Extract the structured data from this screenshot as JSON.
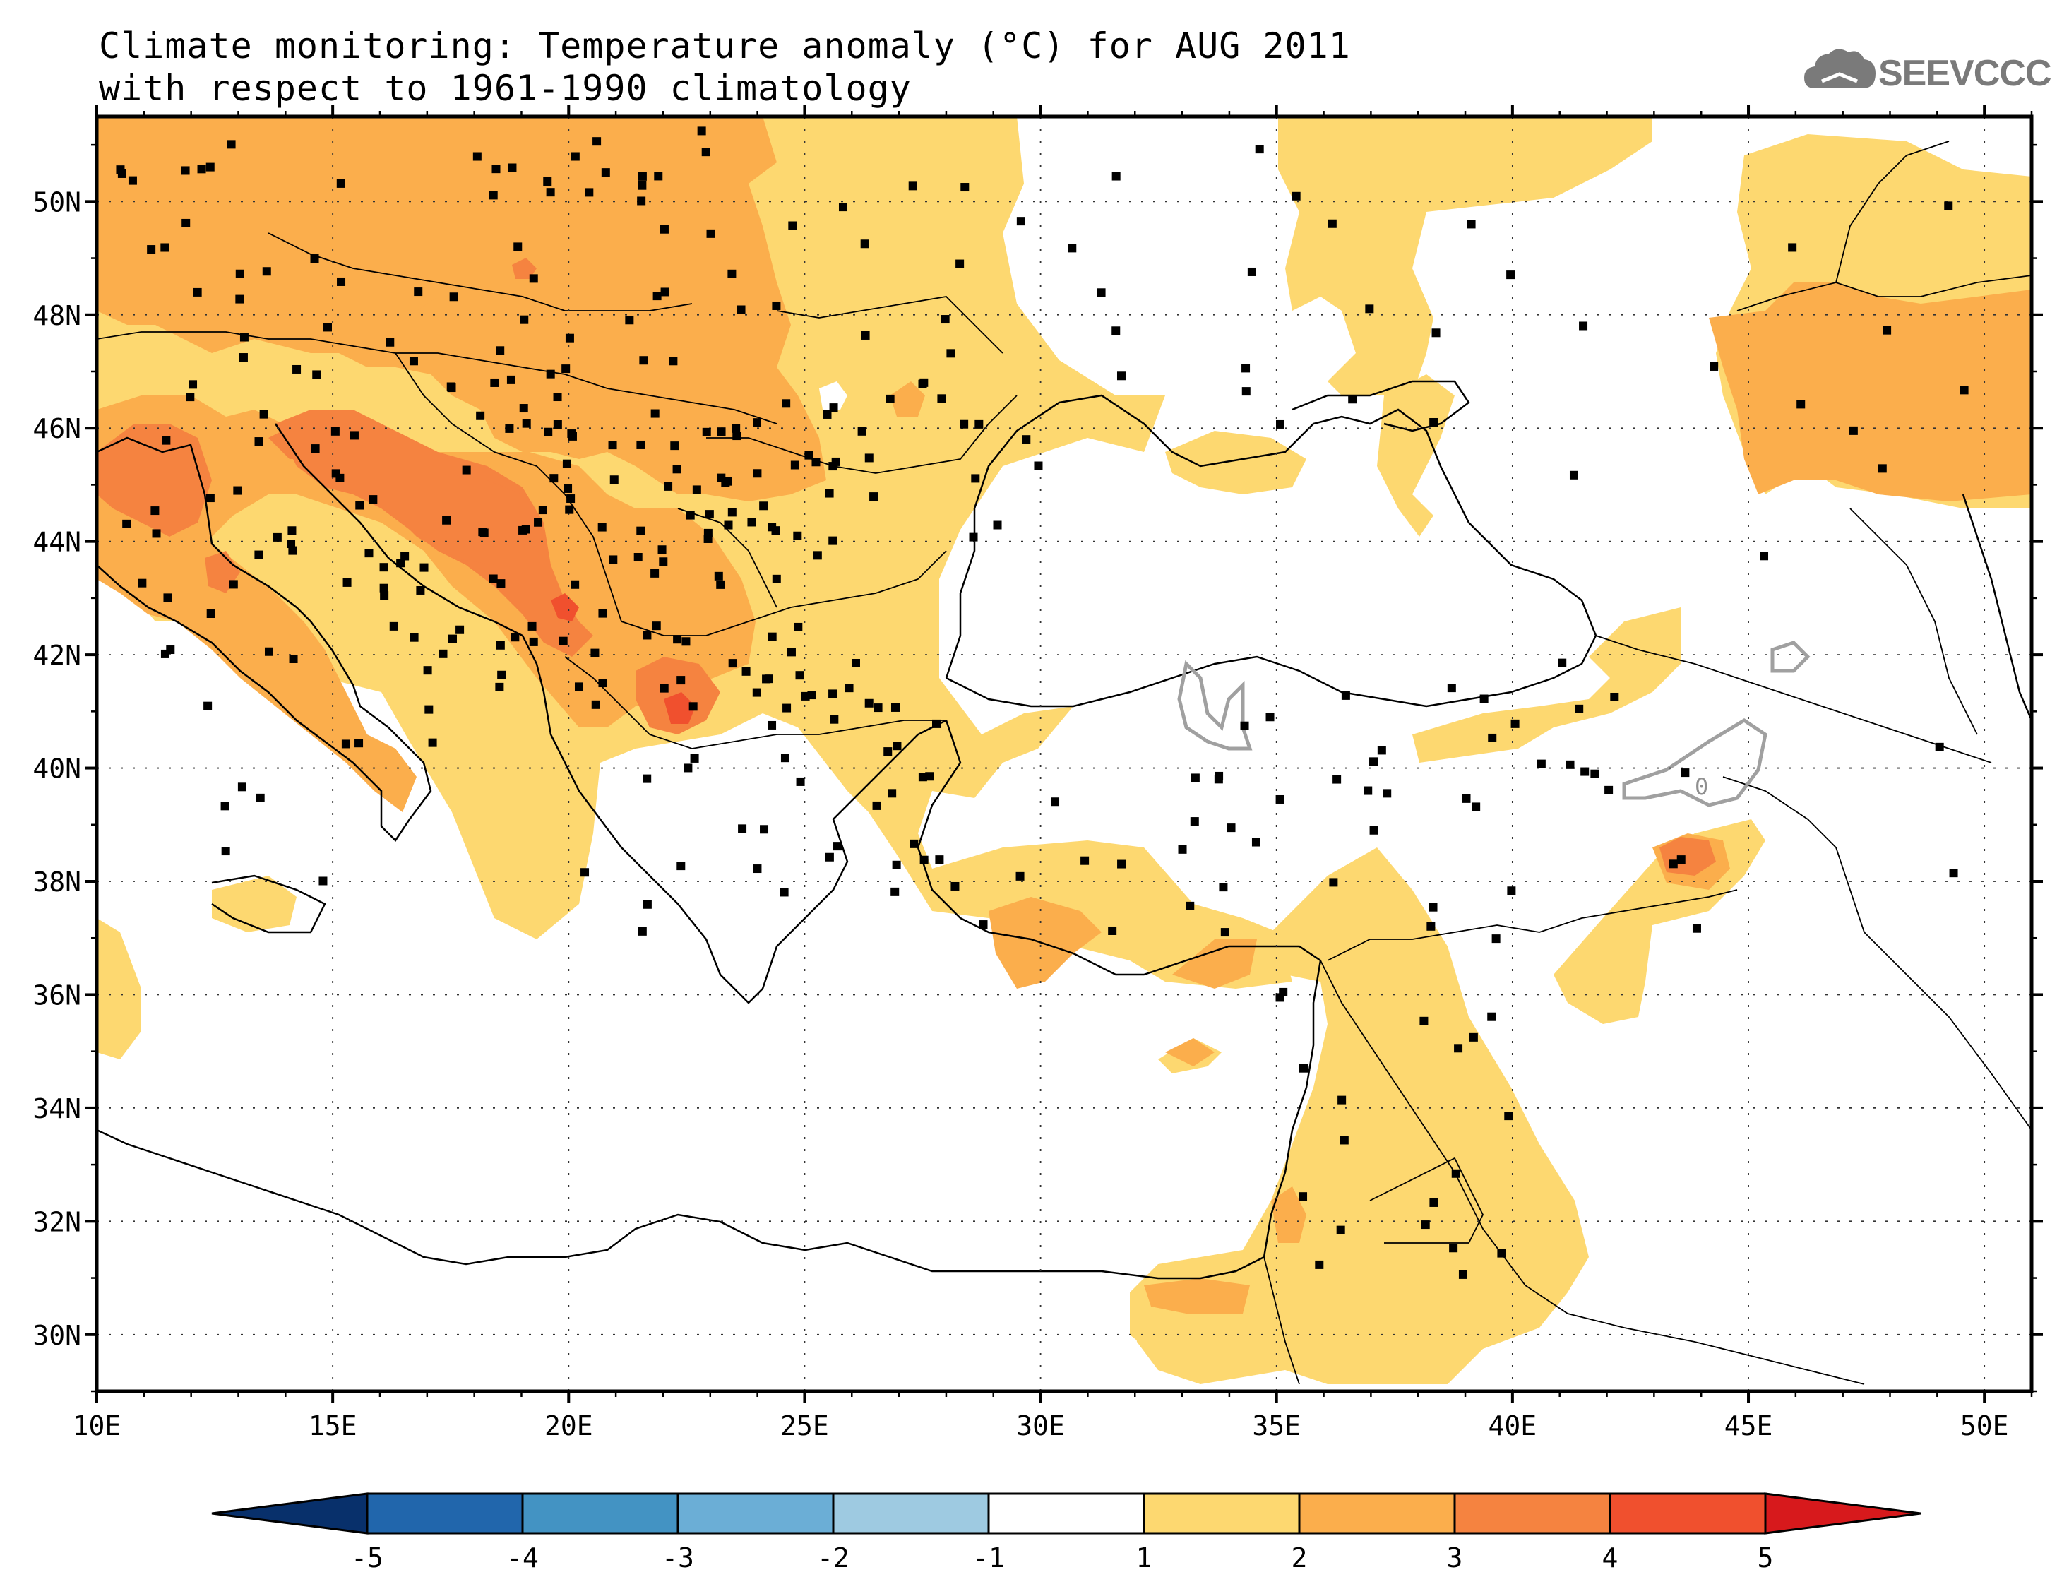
{
  "header": {
    "title_line1": "Climate monitoring: Temperature anomaly (°C) for AUG 2011",
    "title_line2": "with respect to 1961-1990 climatology"
  },
  "logo": {
    "text": "SEEVCCC",
    "icon": "cloud-icon"
  },
  "map": {
    "lon_range": [
      10,
      51
    ],
    "lat_range": [
      29,
      51.5
    ],
    "lon_ticks": [
      "10E",
      "15E",
      "20E",
      "25E",
      "30E",
      "35E",
      "40E",
      "45E",
      "50E"
    ],
    "lat_ticks": [
      "30N",
      "32N",
      "34N",
      "36N",
      "38N",
      "40N",
      "42N",
      "44N",
      "46N",
      "48N",
      "50N"
    ],
    "contour_label": "0"
  },
  "colorbar": {
    "labels": [
      "-5",
      "-4",
      "-3",
      "-2",
      "-1",
      "1",
      "2",
      "3",
      "4",
      "5"
    ],
    "colors": [
      "#08306b",
      "#2166ac",
      "#4393c3",
      "#6baed6",
      "#9ecae1",
      "#ffffff",
      "#fdd870",
      "#fbae4c",
      "#f58340",
      "#f0502e",
      "#d7191c"
    ]
  },
  "legend_colors": {
    "class_1_2": "#fdd870",
    "class_2_3": "#fbae4c",
    "class_3_4": "#f58340",
    "class_4_5": "#f0502e"
  }
}
